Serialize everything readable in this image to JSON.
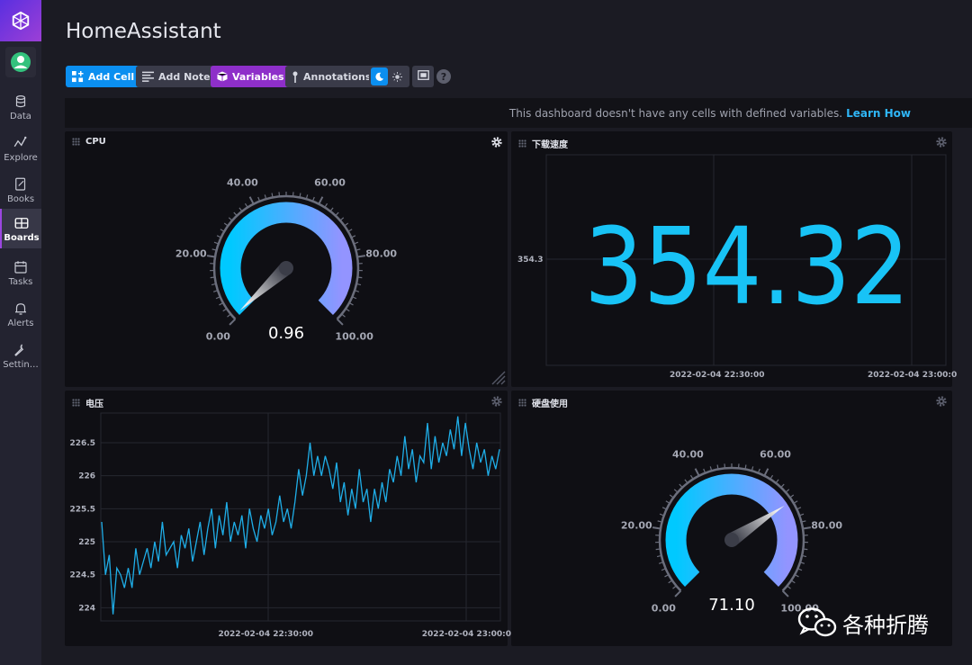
{
  "app": {
    "title": "HomeAssistant"
  },
  "sidebar": {
    "items": [
      {
        "label": "Data",
        "icon": "database-icon"
      },
      {
        "label": "Explore",
        "icon": "graph-icon"
      },
      {
        "label": "Books",
        "icon": "notebook-icon"
      },
      {
        "label": "Boards",
        "icon": "dashboard-icon",
        "active": true
      },
      {
        "label": "Tasks",
        "icon": "calendar-icon"
      },
      {
        "label": "Alerts",
        "icon": "bell-icon"
      },
      {
        "label": "Settin…",
        "icon": "wrench-icon"
      }
    ]
  },
  "toolbar": {
    "add_cell": "Add Cell",
    "add_note": "Add Note",
    "variables": "Variables",
    "annotations": "Annotations"
  },
  "variables_bar": {
    "message": "This dashboard doesn't have any cells with defined variables.",
    "link": "Learn How"
  },
  "cells": {
    "cpu": {
      "title": "CPU",
      "value": "0.96",
      "ticks": [
        "0.00",
        "20.00",
        "40.00",
        "60.00",
        "80.00",
        "100.00"
      ]
    },
    "download": {
      "title": "下载速度",
      "value": "354.32",
      "y_tick": "354.3",
      "x_ticks": [
        "2022-02-04 22:30:00",
        "2022-02-04 23:00:0"
      ]
    },
    "voltage": {
      "title": "电压",
      "y_ticks": [
        "226.5",
        "226",
        "225.5",
        "225",
        "224.5",
        "224"
      ],
      "x_ticks": [
        "2022-02-04 22:30:00",
        "2022-02-04 23:00:0"
      ]
    },
    "disk": {
      "title": "硬盘使用",
      "value": "71.10",
      "ticks": [
        "0.00",
        "20.00",
        "40.00",
        "60.00",
        "80.00",
        "100.00"
      ]
    }
  },
  "chart_data": [
    {
      "type": "gauge",
      "title": "CPU",
      "value": 0.96,
      "range": [
        0,
        100
      ],
      "tick_labels": [
        "0.00",
        "20.00",
        "40.00",
        "60.00",
        "80.00",
        "100.00"
      ]
    },
    {
      "type": "single-stat",
      "title": "下载速度",
      "value": 354.32,
      "y_tick_labels": [
        "354.3"
      ],
      "x_tick_labels": [
        "2022-02-04 22:30:00",
        "2022-02-04 23:00:0"
      ]
    },
    {
      "type": "line",
      "title": "电压",
      "ylim": [
        223.8,
        226.95
      ],
      "y_tick_labels": [
        "226.5",
        "226",
        "225.5",
        "225",
        "224.5",
        "224"
      ],
      "x_tick_labels": [
        "2022-02-04 22:30:00",
        "2022-02-04 23:00:0"
      ],
      "color": "#1faee8",
      "series": [
        {
          "values": [
            225.3,
            224.5,
            224.8,
            223.9,
            224.6,
            224.5,
            224.3,
            224.6,
            224.3,
            224.9,
            224.5,
            224.7,
            224.9,
            224.6,
            225.0,
            224.7,
            225.3,
            224.8,
            224.9,
            225.0,
            224.6,
            225.1,
            224.9,
            225.2,
            224.7,
            225.0,
            225.3,
            224.8,
            225.2,
            225.5,
            224.9,
            225.4,
            225.1,
            225.6,
            225.0,
            225.3,
            225.1,
            225.4,
            224.9,
            225.5,
            225.2,
            225.0,
            225.4,
            225.2,
            225.5,
            225.1,
            225.3,
            225.7,
            225.3,
            225.5,
            225.2,
            225.6,
            226.1,
            225.7,
            226.0,
            226.5,
            226.0,
            226.3,
            226.0,
            226.3,
            226.1,
            225.8,
            226.2,
            225.6,
            225.9,
            225.4,
            225.8,
            225.5,
            226.1,
            225.6,
            225.8,
            225.3,
            225.8,
            225.5,
            225.9,
            225.6,
            226.1,
            225.9,
            226.3,
            226.0,
            226.6,
            226.1,
            226.4,
            225.9,
            226.3,
            226.2,
            226.8,
            226.1,
            226.6,
            226.2,
            226.5,
            226.3,
            226.7,
            226.4,
            226.9,
            226.3,
            226.8,
            226.4,
            226.1,
            226.5,
            226.2,
            226.4,
            226.0,
            226.3,
            226.1,
            226.4
          ]
        }
      ]
    },
    {
      "type": "gauge",
      "title": "硬盘使用",
      "value": 71.1,
      "range": [
        0,
        100
      ],
      "tick_labels": [
        "0.00",
        "20.00",
        "40.00",
        "60.00",
        "80.00",
        "100.00"
      ]
    }
  ],
  "watermark": {
    "text": "各种折腾",
    "icon": "wechat-icon"
  },
  "colors": {
    "accent_blue": "#0b8ff0",
    "accent_purple": "#8e2fc9",
    "gauge_start": "#00c9ff",
    "gauge_end": "#9394ff",
    "line": "#1faee8"
  }
}
